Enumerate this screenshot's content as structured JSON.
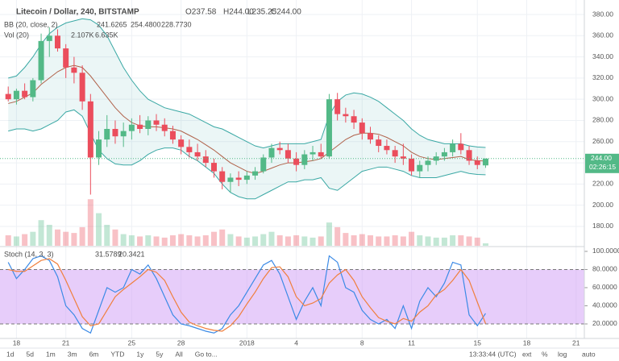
{
  "header": {
    "symbol": "Litecoin / Dollar, 240, BITSTAMP",
    "ohlc": [
      "O237.58",
      "H244.00",
      "L235.25",
      "C244.00"
    ],
    "bb_label": "BB (20, close, 2)",
    "bb_values": [
      "241.6265",
      "254.4800",
      "228.7730"
    ],
    "vol_label": "Vol (20)",
    "vol_values": [
      "2.107K",
      "6.635K"
    ],
    "stoch_label": "Stoch (14, 3, 3)"
  },
  "chart_data": [
    {
      "type": "candlestick",
      "up_color": "#53b987",
      "down_color": "#eb4d5c",
      "grid": true,
      "xlim": [
        -1,
        70
      ],
      "xticks": [
        {
          "value": 1,
          "label": "18"
        },
        {
          "value": 7,
          "label": "21"
        },
        {
          "value": 15,
          "label": "25"
        },
        {
          "value": 21,
          "label": "28"
        },
        {
          "value": 29,
          "label": "2018"
        },
        {
          "value": 35,
          "label": "4"
        },
        {
          "value": 43,
          "label": "8"
        },
        {
          "value": 49,
          "label": "11"
        },
        {
          "value": 57,
          "label": "15"
        },
        {
          "value": 63,
          "label": "18"
        },
        {
          "value": 69,
          "label": "21"
        }
      ],
      "ylim": [
        161.7,
        393.7
      ],
      "yticks": [
        {
          "value": 180,
          "label": "180.00"
        },
        {
          "value": 200,
          "label": "200.00"
        },
        {
          "value": 220,
          "label": "220.00"
        },
        {
          "value": 240,
          "label": "240.00"
        },
        {
          "value": 260,
          "label": "260.00"
        },
        {
          "value": 280,
          "label": "280.00"
        },
        {
          "value": 300,
          "label": "300.00"
        },
        {
          "value": 320,
          "label": "320.00"
        },
        {
          "value": 340,
          "label": "340.00"
        },
        {
          "value": 360,
          "label": "360.00"
        },
        {
          "value": 380,
          "label": "380.00"
        }
      ],
      "open": [
        305,
        300,
        308,
        302,
        318,
        355,
        360,
        348,
        330,
        325,
        298,
        245,
        262,
        272,
        265,
        270,
        276,
        272,
        280,
        276,
        270,
        262,
        255,
        250,
        246,
        240,
        232,
        222,
        226,
        224,
        228,
        232,
        245,
        254,
        252,
        244,
        238,
        248,
        250,
        246,
        300,
        286,
        284,
        278,
        268,
        262,
        256,
        252,
        246,
        244,
        232,
        238,
        242,
        246,
        250,
        258,
        252,
        242,
        237.58
      ],
      "high": [
        312,
        310,
        315,
        320,
        362,
        368,
        366,
        352,
        340,
        332,
        305,
        270,
        285,
        280,
        278,
        282,
        285,
        284,
        286,
        282,
        275,
        266,
        262,
        258,
        252,
        244,
        236,
        230,
        232,
        232,
        236,
        248,
        258,
        260,
        258,
        250,
        252,
        256,
        258,
        305,
        306,
        292,
        290,
        282,
        274,
        266,
        262,
        256,
        258,
        248,
        242,
        246,
        250,
        254,
        262,
        268,
        256,
        246,
        244
      ],
      "low": [
        298,
        295,
        300,
        298,
        315,
        340,
        345,
        320,
        315,
        290,
        210,
        238,
        255,
        258,
        255,
        262,
        268,
        266,
        270,
        265,
        258,
        248,
        245,
        242,
        236,
        226,
        215,
        212,
        218,
        220,
        224,
        230,
        240,
        248,
        240,
        232,
        234,
        242,
        244,
        244,
        280,
        278,
        272,
        262,
        258,
        250,
        248,
        240,
        238,
        228,
        226,
        232,
        238,
        242,
        246,
        248,
        238,
        234,
        235.25
      ],
      "close": [
        300,
        308,
        302,
        318,
        355,
        360,
        348,
        330,
        325,
        298,
        245,
        262,
        272,
        265,
        270,
        276,
        272,
        280,
        276,
        270,
        262,
        255,
        250,
        246,
        240,
        232,
        222,
        226,
        224,
        228,
        232,
        245,
        254,
        252,
        244,
        238,
        248,
        250,
        246,
        300,
        286,
        284,
        278,
        268,
        262,
        256,
        252,
        246,
        244,
        232,
        238,
        242,
        246,
        250,
        258,
        252,
        242,
        238,
        244
      ],
      "series": [
        {
          "color": "#b0624a",
          "values": [
            296,
            298,
            302,
            306,
            314,
            320,
            326,
            330,
            332,
            330,
            322,
            312,
            302,
            292,
            284,
            278,
            275,
            274,
            274,
            273,
            272,
            270,
            266,
            262,
            257,
            252,
            246,
            240,
            236,
            232,
            230,
            232,
            235,
            238,
            240,
            240,
            241,
            242,
            244,
            250,
            256,
            262,
            266,
            268,
            268,
            267,
            264,
            260,
            256,
            250,
            246,
            244,
            243,
            244,
            245,
            246,
            243,
            242,
            241.6265
          ]
        },
        {
          "color": "#3aa8a4",
          "values": [
            320,
            322,
            330,
            340,
            352,
            362,
            368,
            372,
            374,
            376,
            375,
            370,
            360,
            345,
            330,
            318,
            308,
            300,
            296,
            292,
            290,
            288,
            286,
            282,
            278,
            274,
            272,
            268,
            264,
            260,
            256,
            254,
            256,
            258,
            258,
            258,
            258,
            260,
            262,
            285,
            298,
            304,
            306,
            305,
            302,
            298,
            292,
            286,
            280,
            272,
            266,
            262,
            260,
            258,
            258,
            258,
            256,
            255,
            254.48
          ]
        },
        {
          "color": "#3aa8a4",
          "values": [
            270,
            272,
            272,
            270,
            272,
            276,
            280,
            288,
            290,
            284,
            268,
            252,
            244,
            239,
            238,
            238,
            242,
            248,
            252,
            254,
            254,
            252,
            246,
            242,
            236,
            230,
            220,
            212,
            208,
            206,
            206,
            210,
            214,
            218,
            222,
            222,
            224,
            224,
            226,
            216,
            214,
            220,
            226,
            232,
            234,
            236,
            236,
            234,
            232,
            228,
            226,
            226,
            226,
            228,
            230,
            232,
            230,
            229,
            228.773
          ]
        }
      ],
      "band_fill": "#3aa8a4",
      "last_label": "244.00",
      "countdown": "02:26:15"
    },
    {
      "type": "bar",
      "ylim": [
        0,
        45000
      ],
      "values": [
        9000,
        8000,
        10000,
        12000,
        22000,
        18000,
        14000,
        12000,
        11000,
        16000,
        40000,
        28000,
        18000,
        14000,
        10000,
        9000,
        8000,
        9000,
        8000,
        7000,
        9000,
        10000,
        9000,
        8000,
        9000,
        12000,
        14000,
        10000,
        8000,
        7000,
        8000,
        10000,
        12000,
        9000,
        8000,
        9000,
        8000,
        7000,
        8000,
        20000,
        16000,
        11000,
        9000,
        10000,
        9000,
        8000,
        8000,
        9000,
        8000,
        12000,
        9000,
        8000,
        7000,
        7000,
        9000,
        9000,
        8000,
        7000,
        2107
      ]
    },
    {
      "type": "line",
      "ylim": [
        4,
        104.4
      ],
      "yticks": [
        {
          "value": 20,
          "label": "20.0000"
        },
        {
          "value": 40,
          "label": "40.0000"
        },
        {
          "value": 60,
          "label": "60.0000"
        },
        {
          "value": 80,
          "label": "80.0000"
        },
        {
          "value": 100,
          "label": "100.0000"
        }
      ],
      "band": [
        20,
        80
      ],
      "band_color": "#cf9cf5",
      "series": [
        {
          "color": "#3b8ae6",
          "values": [
            88,
            70,
            80,
            92,
            95,
            90,
            72,
            40,
            30,
            15,
            10,
            35,
            60,
            55,
            60,
            80,
            75,
            85,
            70,
            50,
            30,
            20,
            18,
            15,
            12,
            10,
            15,
            30,
            40,
            55,
            70,
            85,
            90,
            75,
            50,
            25,
            45,
            60,
            40,
            95,
            88,
            60,
            55,
            35,
            25,
            20,
            25,
            15,
            40,
            15,
            45,
            60,
            50,
            65,
            88,
            85,
            30,
            18,
            31.5789
          ]
        },
        {
          "color": "#f07f3c",
          "values": [
            80,
            78,
            78,
            84,
            90,
            92,
            86,
            68,
            48,
            28,
            18,
            20,
            35,
            50,
            58,
            65,
            72,
            80,
            77,
            68,
            50,
            33,
            22,
            18,
            15,
            13,
            12,
            18,
            28,
            42,
            55,
            70,
            82,
            83,
            72,
            50,
            40,
            43,
            48,
            65,
            74,
            80,
            68,
            50,
            38,
            27,
            23,
            20,
            26,
            23,
            33,
            40,
            52,
            58,
            68,
            80,
            68,
            44,
            20.3421
          ]
        }
      ]
    }
  ],
  "footer": {
    "ranges": [
      "1d",
      "5d",
      "1m",
      "3m",
      "6m",
      "YTD",
      "1y",
      "5y",
      "All",
      "Go to..."
    ],
    "clock": "13:33:44 (UTC)",
    "options": [
      "ext",
      "%",
      "log",
      "auto"
    ]
  }
}
